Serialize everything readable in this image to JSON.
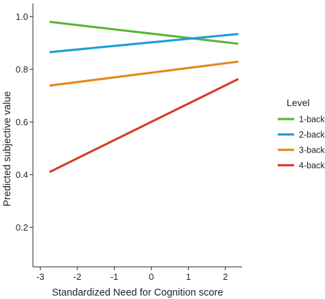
{
  "chart_data": {
    "type": "line",
    "title": "",
    "xlabel": "Standardized Need for Cognition score",
    "ylabel": "Predicted subjective value",
    "xlim": [
      -3.2,
      2.45
    ],
    "ylim": [
      0.05,
      1.05
    ],
    "xticks": [
      -3,
      -2,
      -1,
      0,
      1,
      2
    ],
    "yticks": [
      0.2,
      0.4,
      0.6,
      0.8,
      1.0
    ],
    "xtick_labels": [
      "-3",
      "-2",
      "-1",
      "0",
      "1",
      "2"
    ],
    "ytick_labels": [
      "0.2",
      "0.4",
      "0.6",
      "0.8",
      "1.0"
    ],
    "grid": false,
    "legend": {
      "title": "Level",
      "placement": "right"
    },
    "series": [
      {
        "name": "1-back",
        "color": "#5cb531",
        "x": [
          -2.75,
          2.35
        ],
        "y": [
          0.98,
          0.897
        ]
      },
      {
        "name": "2-back",
        "color": "#1b9ed6",
        "x": [
          -2.75,
          2.35
        ],
        "y": [
          0.865,
          0.934
        ]
      },
      {
        "name": "3-back",
        "color": "#e8871e",
        "x": [
          -2.75,
          2.35
        ],
        "y": [
          0.738,
          0.829
        ]
      },
      {
        "name": "4-back",
        "color": "#d43d2a",
        "x": [
          -2.75,
          2.35
        ],
        "y": [
          0.41,
          0.763
        ]
      }
    ]
  }
}
